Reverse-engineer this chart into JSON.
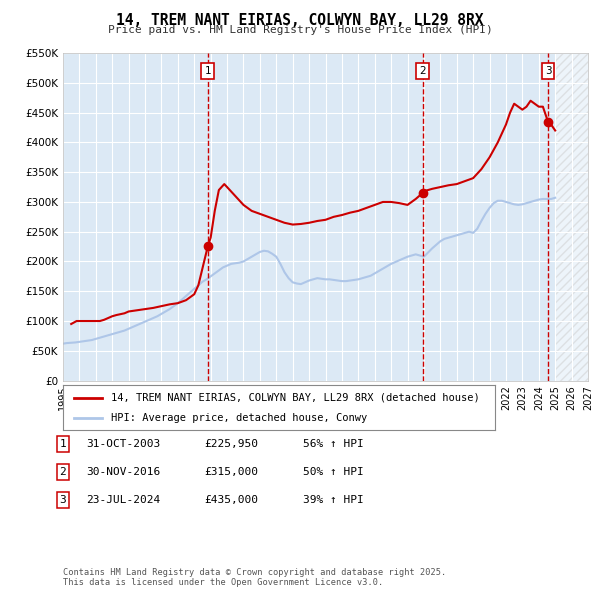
{
  "title": "14, TREM NANT EIRIAS, COLWYN BAY, LL29 8RX",
  "subtitle": "Price paid vs. HM Land Registry's House Price Index (HPI)",
  "ylim": [
    0,
    550000
  ],
  "xlim_start": 1995.0,
  "xlim_end": 2027.0,
  "yticks": [
    0,
    50000,
    100000,
    150000,
    200000,
    250000,
    300000,
    350000,
    400000,
    450000,
    500000,
    550000
  ],
  "ytick_labels": [
    "£0",
    "£50K",
    "£100K",
    "£150K",
    "£200K",
    "£250K",
    "£300K",
    "£350K",
    "£400K",
    "£450K",
    "£500K",
    "£550K"
  ],
  "xticks": [
    1995,
    1996,
    1997,
    1998,
    1999,
    2000,
    2001,
    2002,
    2003,
    2004,
    2005,
    2006,
    2007,
    2008,
    2009,
    2010,
    2011,
    2012,
    2013,
    2014,
    2015,
    2016,
    2017,
    2018,
    2019,
    2020,
    2021,
    2022,
    2023,
    2024,
    2025,
    2026,
    2027
  ],
  "hpi_color": "#aec6e8",
  "price_color": "#cc0000",
  "bg_color": "#dce9f5",
  "grid_color": "#ffffff",
  "vline_color": "#cc0000",
  "marker_color": "#cc0000",
  "transactions": [
    {
      "date_dec": 2003.83,
      "price": 225950,
      "label": "1"
    },
    {
      "date_dec": 2016.92,
      "price": 315000,
      "label": "2"
    },
    {
      "date_dec": 2024.56,
      "price": 435000,
      "label": "3"
    }
  ],
  "transaction_info": [
    {
      "num": "1",
      "date": "31-OCT-2003",
      "price": "£225,950",
      "pct": "56% ↑ HPI"
    },
    {
      "num": "2",
      "date": "30-NOV-2016",
      "price": "£315,000",
      "pct": "50% ↑ HPI"
    },
    {
      "num": "3",
      "date": "23-JUL-2024",
      "price": "£435,000",
      "pct": "39% ↑ HPI"
    }
  ],
  "legend_line1": "14, TREM NANT EIRIAS, COLWYN BAY, LL29 8RX (detached house)",
  "legend_line2": "HPI: Average price, detached house, Conwy",
  "footnote": "Contains HM Land Registry data © Crown copyright and database right 2025.\nThis data is licensed under the Open Government Licence v3.0.",
  "hpi_x": [
    1995.0,
    1995.25,
    1995.5,
    1995.75,
    1996.0,
    1996.25,
    1996.5,
    1996.75,
    1997.0,
    1997.25,
    1997.5,
    1997.75,
    1998.0,
    1998.25,
    1998.5,
    1998.75,
    1999.0,
    1999.25,
    1999.5,
    1999.75,
    2000.0,
    2000.25,
    2000.5,
    2000.75,
    2001.0,
    2001.25,
    2001.5,
    2001.75,
    2002.0,
    2002.25,
    2002.5,
    2002.75,
    2003.0,
    2003.25,
    2003.5,
    2003.75,
    2004.0,
    2004.25,
    2004.5,
    2004.75,
    2005.0,
    2005.25,
    2005.5,
    2005.75,
    2006.0,
    2006.25,
    2006.5,
    2006.75,
    2007.0,
    2007.25,
    2007.5,
    2007.75,
    2008.0,
    2008.25,
    2008.5,
    2008.75,
    2009.0,
    2009.25,
    2009.5,
    2009.75,
    2010.0,
    2010.25,
    2010.5,
    2010.75,
    2011.0,
    2011.25,
    2011.5,
    2011.75,
    2012.0,
    2012.25,
    2012.5,
    2012.75,
    2013.0,
    2013.25,
    2013.5,
    2013.75,
    2014.0,
    2014.25,
    2014.5,
    2014.75,
    2015.0,
    2015.25,
    2015.5,
    2015.75,
    2016.0,
    2016.25,
    2016.5,
    2016.75,
    2017.0,
    2017.25,
    2017.5,
    2017.75,
    2018.0,
    2018.25,
    2018.5,
    2018.75,
    2019.0,
    2019.25,
    2019.5,
    2019.75,
    2020.0,
    2020.25,
    2020.5,
    2020.75,
    2021.0,
    2021.25,
    2021.5,
    2021.75,
    2022.0,
    2022.25,
    2022.5,
    2022.75,
    2023.0,
    2023.25,
    2023.5,
    2023.75,
    2024.0,
    2024.25,
    2024.5,
    2024.75,
    2025.0
  ],
  "hpi_y": [
    62000,
    63000,
    63500,
    64000,
    65000,
    66000,
    67000,
    68000,
    70000,
    72000,
    74000,
    76000,
    78000,
    80000,
    82000,
    84000,
    87000,
    90000,
    93000,
    96000,
    99000,
    102000,
    105000,
    108000,
    112000,
    116000,
    120000,
    125000,
    130000,
    136000,
    142000,
    148000,
    154000,
    160000,
    166000,
    170000,
    175000,
    180000,
    185000,
    190000,
    193000,
    196000,
    197000,
    198000,
    200000,
    204000,
    208000,
    212000,
    216000,
    218000,
    217000,
    213000,
    208000,
    196000,
    182000,
    172000,
    165000,
    163000,
    162000,
    165000,
    168000,
    170000,
    172000,
    171000,
    170000,
    170000,
    169000,
    168000,
    167000,
    167000,
    168000,
    169000,
    170000,
    172000,
    174000,
    176000,
    180000,
    184000,
    188000,
    192000,
    196000,
    199000,
    202000,
    205000,
    208000,
    210000,
    212000,
    210000,
    208000,
    215000,
    222000,
    228000,
    234000,
    238000,
    240000,
    242000,
    244000,
    246000,
    248000,
    250000,
    248000,
    255000,
    268000,
    280000,
    290000,
    298000,
    302000,
    302000,
    300000,
    298000,
    296000,
    295000,
    296000,
    298000,
    300000,
    302000,
    304000,
    305000,
    305000,
    305000,
    307000
  ],
  "price_x": [
    1995.5,
    1995.83,
    1997.25,
    1997.5,
    1997.75,
    1998.0,
    1998.25,
    1998.75,
    1999.0,
    1999.5,
    2000.0,
    2000.5,
    2001.0,
    2001.5,
    2002.0,
    2002.5,
    2003.0,
    2003.25,
    2003.83,
    2004.0,
    2004.25,
    2004.5,
    2004.83,
    2005.0,
    2005.5,
    2006.0,
    2006.5,
    2007.0,
    2007.5,
    2008.0,
    2008.5,
    2009.0,
    2009.5,
    2010.0,
    2010.5,
    2011.0,
    2011.5,
    2012.0,
    2012.5,
    2013.0,
    2013.5,
    2014.0,
    2014.5,
    2015.0,
    2015.5,
    2016.0,
    2016.5,
    2016.92,
    2017.0,
    2017.5,
    2018.0,
    2018.5,
    2019.0,
    2019.5,
    2020.0,
    2020.5,
    2021.0,
    2021.5,
    2022.0,
    2022.25,
    2022.5,
    2022.75,
    2023.0,
    2023.25,
    2023.5,
    2023.75,
    2024.0,
    2024.25,
    2024.56,
    2024.75,
    2025.0
  ],
  "price_y": [
    95000,
    100000,
    100000,
    102000,
    105000,
    108000,
    110000,
    113000,
    116000,
    118000,
    120000,
    122000,
    125000,
    128000,
    130000,
    135000,
    145000,
    160000,
    225950,
    240000,
    285000,
    320000,
    330000,
    325000,
    310000,
    295000,
    285000,
    280000,
    275000,
    270000,
    265000,
    262000,
    263000,
    265000,
    268000,
    270000,
    275000,
    278000,
    282000,
    285000,
    290000,
    295000,
    300000,
    300000,
    298000,
    295000,
    305000,
    315000,
    318000,
    322000,
    325000,
    328000,
    330000,
    335000,
    340000,
    355000,
    375000,
    400000,
    430000,
    450000,
    465000,
    460000,
    455000,
    460000,
    470000,
    465000,
    460000,
    460000,
    435000,
    430000,
    420000
  ]
}
